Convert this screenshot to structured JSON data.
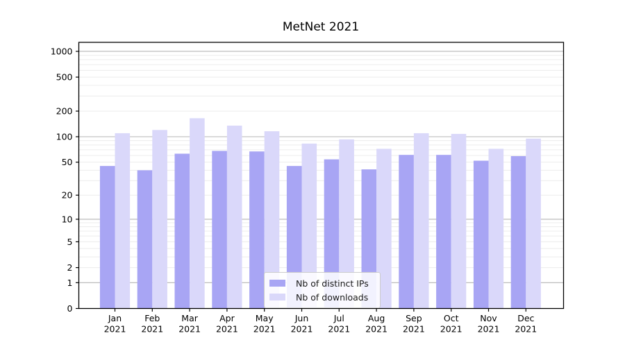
{
  "chart_data": {
    "type": "bar",
    "title": "MetNet 2021",
    "categories": [
      "Jan 2021",
      "Feb 2021",
      "Mar 2021",
      "Apr 2021",
      "May 2021",
      "Jun 2021",
      "Jul 2021",
      "Aug 2021",
      "Sep 2021",
      "Oct 2021",
      "Nov 2021",
      "Dec 2021"
    ],
    "series": [
      {
        "name": "Nb of distinct IPs",
        "color": "#a8a5f4",
        "values": [
          45,
          40,
          63,
          68,
          67,
          45,
          54,
          41,
          61,
          61,
          52,
          59
        ]
      },
      {
        "name": "Nb of downloads",
        "color": "#dad8fa",
        "values": [
          110,
          120,
          165,
          135,
          116,
          83,
          93,
          72,
          110,
          108,
          72,
          95
        ]
      }
    ],
    "xlabel": "",
    "ylabel": "",
    "y_axis": {
      "scale": "symlog",
      "ticks": [
        1000,
        500,
        200,
        100,
        50,
        20,
        10,
        5,
        2,
        1,
        0
      ],
      "top_value": 1276,
      "grid": true
    },
    "legend_position": "lower center"
  },
  "style": {
    "bar_dark": "#a8a5f4",
    "bar_light": "#dad8fa",
    "grid_minor": "#ececec",
    "grid_major": "#b4b4b4",
    "frame": "#000000",
    "text": "#000000",
    "legend_border": "#cccccc"
  }
}
